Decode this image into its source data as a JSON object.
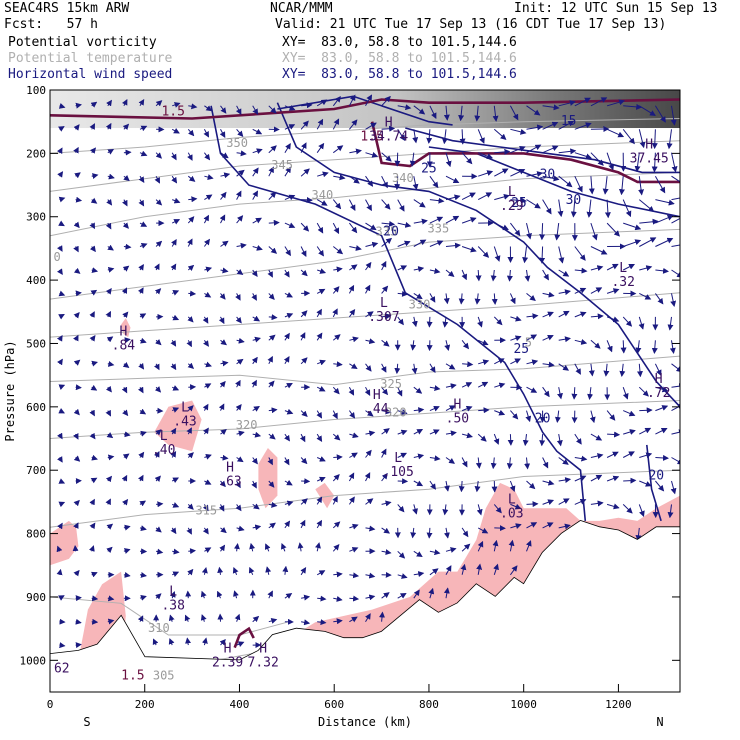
{
  "header": {
    "model": "SEAC4RS 15km ARW",
    "center": "NCAR/MMM",
    "init": "Init: 12 UTC Sun 15 Sep 13",
    "fcst": "Fcst:   57 h",
    "valid": "Valid: 21 UTC Tue 17 Sep 13 (16 CDT Tue 17 Sep 13)"
  },
  "fields": [
    {
      "name": "Potential vorticity",
      "xy": "XY=  83.0, 58.8 to 101.5,144.6",
      "color": "#000000"
    },
    {
      "name": "Potential temperature",
      "xy": "XY=  83.0, 58.8 to 101.5,144.6",
      "color": "#b0b0b0"
    },
    {
      "name": "Horizontal wind speed",
      "xy": "XY=  83.0, 58.8 to 101.5,144.6",
      "color": "#1a1a80"
    }
  ],
  "chart_data": {
    "type": "cross-section",
    "xlabel": "Distance (km)",
    "ylabel": "Pressure (hPa)",
    "xlim": [
      0,
      1330
    ],
    "ylim": [
      1050,
      100
    ],
    "x_ticks": [
      "0",
      "200",
      "400",
      "600",
      "800",
      "1000",
      "1200"
    ],
    "y_ticks": [
      "100",
      "200",
      "300",
      "400",
      "500",
      "600",
      "700",
      "800",
      "900",
      "1000"
    ],
    "endpoints": {
      "left": "S",
      "right": "N"
    },
    "colors": {
      "pv_shade": "#f7b6b9",
      "wind": "#1a1a80",
      "theta": "#b0b0b0",
      "pv_line": "#6a1040",
      "terrain": "#000000"
    },
    "terrain_profile": [
      [
        0,
        990
      ],
      [
        60,
        985
      ],
      [
        100,
        975
      ],
      [
        150,
        930
      ],
      [
        200,
        995
      ],
      [
        400,
        1000
      ],
      [
        440,
        985
      ],
      [
        470,
        960
      ],
      [
        520,
        950
      ],
      [
        580,
        955
      ],
      [
        620,
        965
      ],
      [
        660,
        965
      ],
      [
        700,
        955
      ],
      [
        740,
        930
      ],
      [
        780,
        905
      ],
      [
        820,
        925
      ],
      [
        860,
        910
      ],
      [
        900,
        880
      ],
      [
        940,
        900
      ],
      [
        980,
        870
      ],
      [
        1000,
        880
      ],
      [
        1040,
        830
      ],
      [
        1080,
        800
      ],
      [
        1120,
        780
      ],
      [
        1160,
        790
      ],
      [
        1200,
        795
      ],
      [
        1240,
        810
      ],
      [
        1280,
        790
      ],
      [
        1330,
        790
      ]
    ],
    "wind_isotach_labels": [
      {
        "text": "20",
        "x": 720,
        "p": 330
      },
      {
        "text": "25",
        "x": 800,
        "p": 230
      },
      {
        "text": "25",
        "x": 990,
        "p": 285
      },
      {
        "text": "30",
        "x": 1050,
        "p": 240
      },
      {
        "text": "30",
        "x": 1105,
        "p": 280
      },
      {
        "text": "25",
        "x": 995,
        "p": 515
      },
      {
        "text": "20",
        "x": 1040,
        "p": 625
      },
      {
        "text": "20",
        "x": 1280,
        "p": 715
      },
      {
        "text": "15",
        "x": 1095,
        "p": 155
      }
    ],
    "theta_labels": [
      {
        "text": "350",
        "x": 395,
        "p": 190
      },
      {
        "text": "345",
        "x": 490,
        "p": 225
      },
      {
        "text": "340",
        "x": 575,
        "p": 272
      },
      {
        "text": "340",
        "x": 745,
        "p": 245
      },
      {
        "text": "335",
        "x": 710,
        "p": 330
      },
      {
        "text": "335",
        "x": 820,
        "p": 325
      },
      {
        "text": "330",
        "x": 780,
        "p": 445
      },
      {
        "text": "325",
        "x": 720,
        "p": 570
      },
      {
        "text": "320",
        "x": 730,
        "p": 615
      },
      {
        "text": "320",
        "x": 415,
        "p": 635
      },
      {
        "text": "315",
        "x": 330,
        "p": 770
      },
      {
        "text": "310",
        "x": 230,
        "p": 955
      },
      {
        "text": "305",
        "x": 240,
        "p": 1030
      },
      {
        "text": "0",
        "x": 15,
        "p": 370
      },
      {
        "text": "5",
        "x": 1010,
        "p": 505
      }
    ],
    "pv_labels": [
      {
        "text": "1.5",
        "x": 260,
        "p": 140
      },
      {
        "text": "1.5",
        "x": 680,
        "p": 180
      },
      {
        "text": "1.5",
        "x": 175,
        "p": 1030
      }
    ],
    "extrema": [
      {
        "kind": "H",
        "value": "34.74",
        "x": 715,
        "p": 170
      },
      {
        "kind": "L",
        "value": ".29",
        "x": 975,
        "p": 280
      },
      {
        "kind": "H",
        "value": "37.45",
        "x": 1265,
        "p": 205
      },
      {
        "kind": "L",
        "value": ".32",
        "x": 1210,
        "p": 400
      },
      {
        "kind": "L",
        "value": ".307",
        "x": 705,
        "p": 455
      },
      {
        "kind": "H",
        "value": ".84",
        "x": 155,
        "p": 500
      },
      {
        "kind": "H",
        "value": ".72",
        "x": 1285,
        "p": 575
      },
      {
        "kind": "L",
        "value": ".43",
        "x": 285,
        "p": 620
      },
      {
        "kind": "L",
        "value": ".40",
        "x": 240,
        "p": 665
      },
      {
        "kind": "H",
        "value": ".44",
        "x": 690,
        "p": 600
      },
      {
        "kind": "H",
        "value": ".50",
        "x": 860,
        "p": 615
      },
      {
        "kind": "H",
        "value": ".63",
        "x": 380,
        "p": 715
      },
      {
        "kind": "L",
        "value": ".105",
        "x": 735,
        "p": 700
      },
      {
        "kind": "L",
        "value": ".03",
        "x": 975,
        "p": 765
      },
      {
        "kind": "L",
        "value": ".38",
        "x": 260,
        "p": 910
      },
      {
        "kind": "H",
        "value": "2.39",
        "x": 375,
        "p": 1000
      },
      {
        "kind": "H",
        "value": "7.32",
        "x": 450,
        "p": 1000
      },
      {
        "kind": "",
        "value": "62",
        "x": 25,
        "p": 1010
      }
    ]
  }
}
